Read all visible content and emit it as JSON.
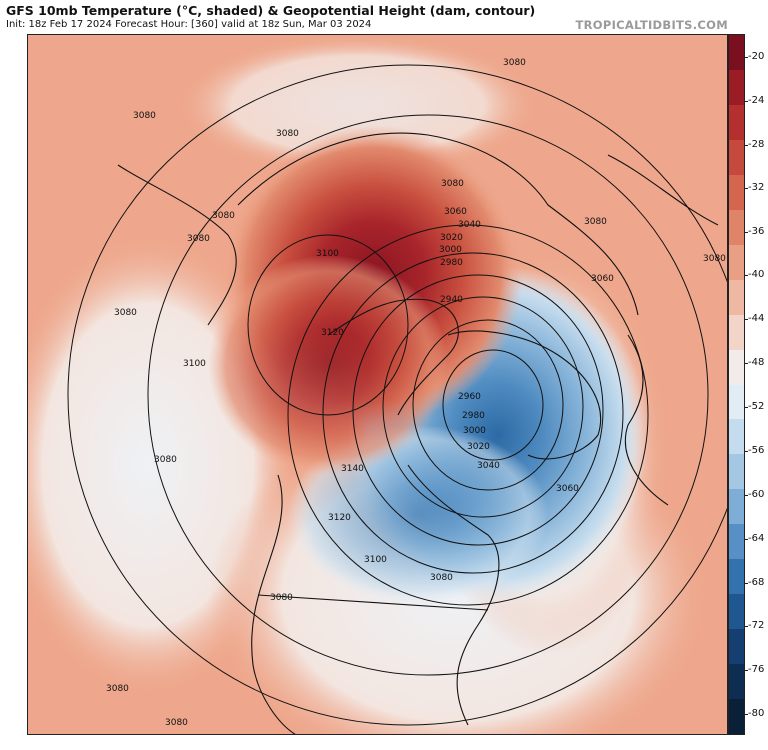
{
  "header": {
    "title": "GFS 10mb Temperature (°C, shaded) & Geopotential Height (dam, contour)",
    "subtitle": "Init: 18z Feb 17 2024   Forecast Hour: [360]   valid at 18z Sun, Mar 03 2024",
    "brand": "TROPICALTIDBITS.COM"
  },
  "colorbar": {
    "labels": [
      "-20",
      "-24",
      "-28",
      "-32",
      "-36",
      "-40",
      "-44",
      "-48",
      "-52",
      "-56",
      "-60",
      "-64",
      "-68",
      "-72",
      "-76",
      "-80"
    ],
    "colors": [
      "#7a0f1f",
      "#9c1c26",
      "#b3302f",
      "#c5493d",
      "#d46650",
      "#df8468",
      "#e89f84",
      "#efb8a2",
      "#f2d4c8",
      "#f1ebea",
      "#e2ecf4",
      "#c5dcee",
      "#a4c7e4",
      "#7eadd5",
      "#5690c4",
      "#3372ae",
      "#1f5790",
      "#153f70",
      "#0e2d52",
      "#0a1f38"
    ]
  },
  "contour_labels": [
    "3080",
    "3080",
    "3080",
    "3080",
    "3080",
    "3080",
    "3080",
    "3080",
    "3080",
    "3080",
    "3080",
    "3080",
    "3080",
    "3080",
    "3060",
    "3060",
    "3060",
    "3040",
    "3040",
    "3020",
    "3020",
    "3000",
    "3000",
    "2980",
    "2980",
    "2960",
    "2940",
    "3100",
    "3100",
    "3100",
    "3120",
    "3120",
    "3140"
  ]
}
